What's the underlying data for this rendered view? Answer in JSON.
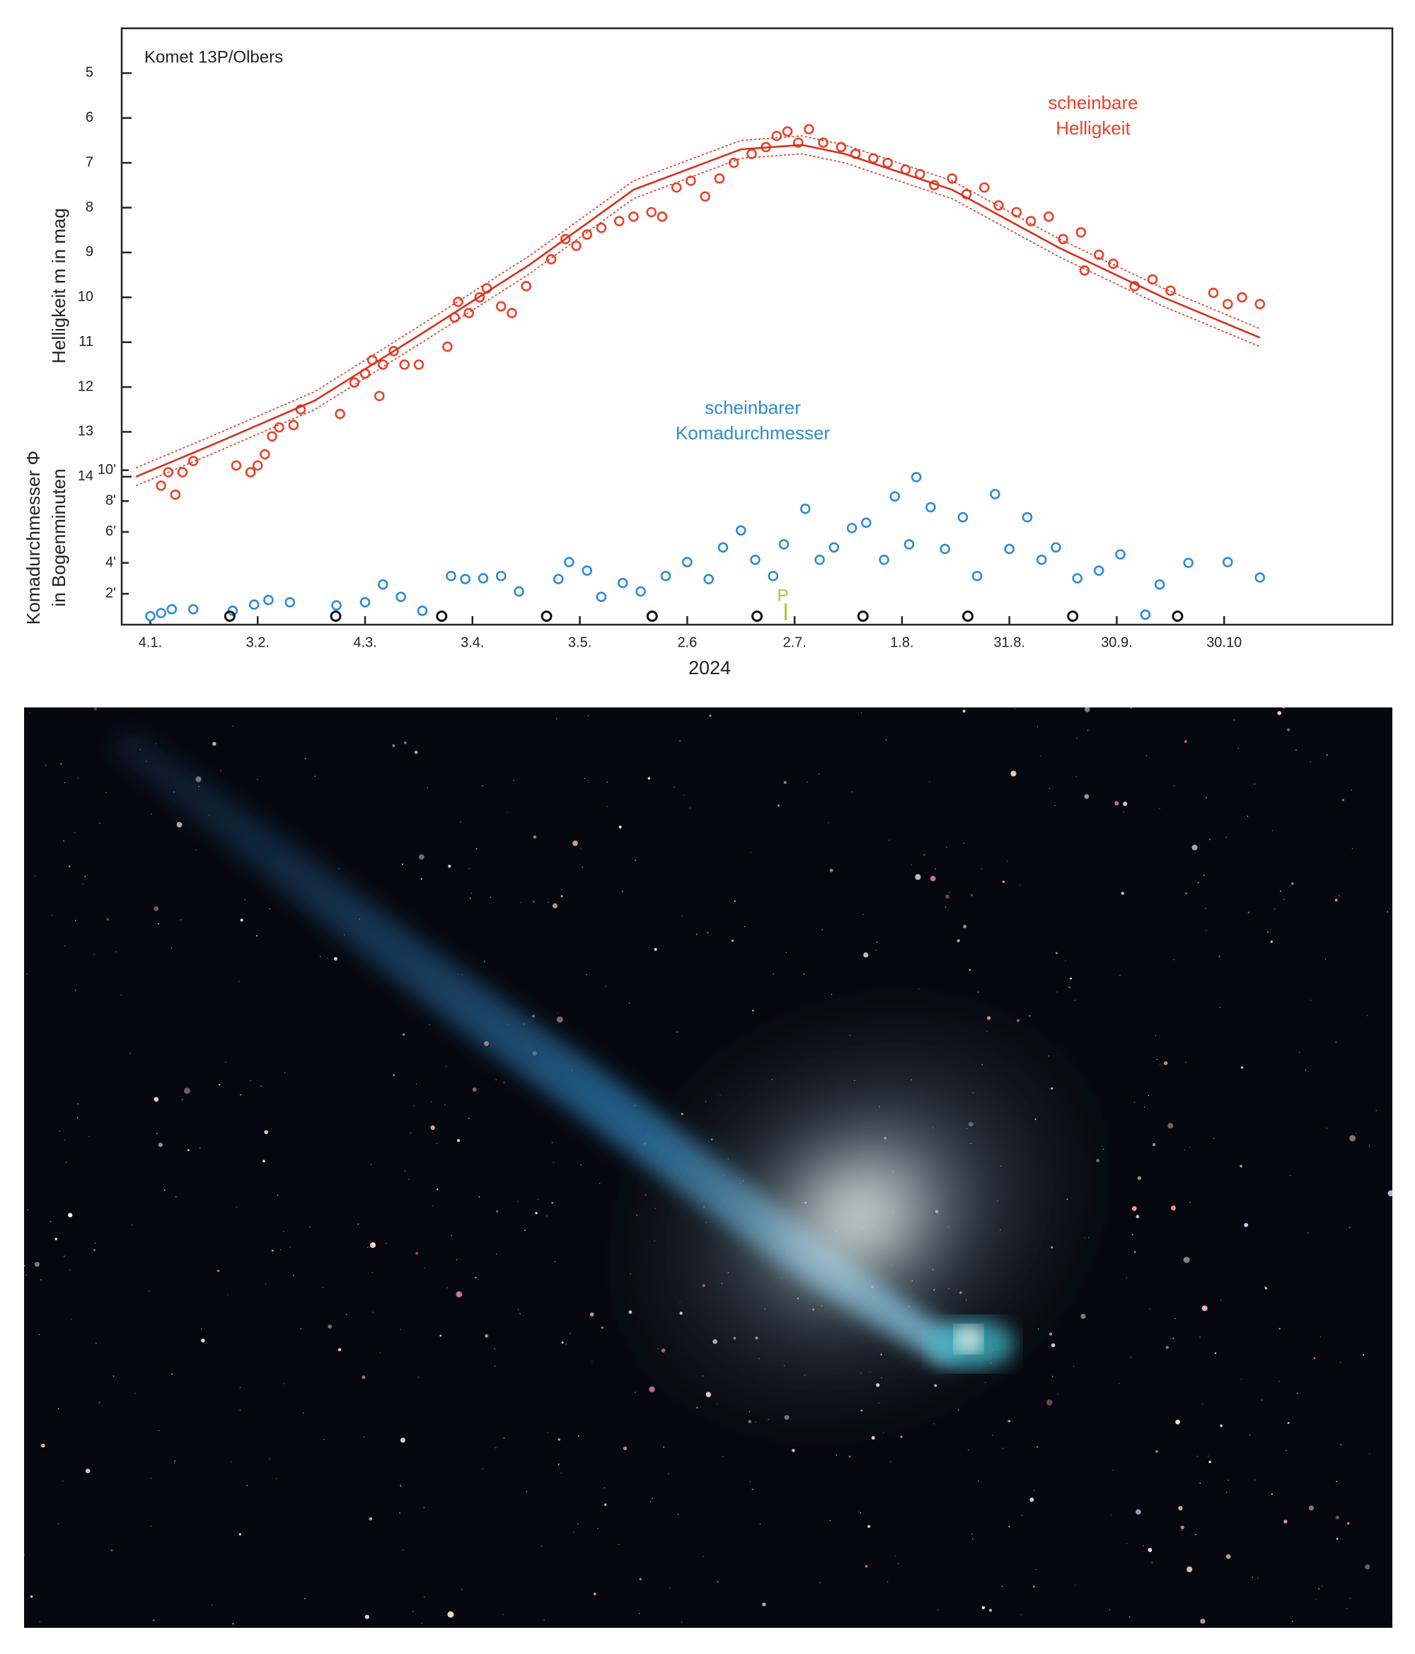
{
  "chart_data": {
    "type": "scatter",
    "title": "Komet 13P/Olbers",
    "y_label": "Helligkeit m in mag",
    "y2_label": [
      "Komadurchmesser Φ",
      "in Bogenminuten"
    ],
    "x_label": "2024",
    "annotations": [
      {
        "text": [
          "scheinbare",
          "Helligkeit"
        ],
        "color": "#e8412c"
      },
      {
        "text": [
          "scheinbarer",
          "Komadurchmesser"
        ],
        "color": "#2f8bcf"
      }
    ],
    "xlim": [
      -4,
      351
    ],
    "xticks": [
      {
        "value": 4,
        "label": "4.1."
      },
      {
        "value": 34,
        "label": "3.2."
      },
      {
        "value": 64,
        "label": "4.3."
      },
      {
        "value": 94,
        "label": "3.4."
      },
      {
        "value": 124,
        "label": "3.5."
      },
      {
        "value": 154,
        "label": "2.6"
      },
      {
        "value": 184,
        "label": "2.7."
      },
      {
        "value": 214,
        "label": "1.8."
      },
      {
        "value": 244,
        "label": "31.8."
      },
      {
        "value": 274,
        "label": "30.9."
      },
      {
        "value": 304,
        "label": "30.10"
      }
    ],
    "ylim": [
      17.3,
      4
    ],
    "yticks": [
      5,
      6,
      7,
      8,
      9,
      10,
      11,
      12,
      13,
      14
    ],
    "y2lim": [
      0,
      38.6
    ],
    "y2ticks": [
      {
        "value": 2,
        "label": "2'"
      },
      {
        "value": 4,
        "label": "4'"
      },
      {
        "value": 6,
        "label": "6'"
      },
      {
        "value": 8,
        "label": "8'"
      },
      {
        "value": 10,
        "label": "10'"
      }
    ],
    "series": [
      {
        "type": "scatter",
        "axis": "y",
        "color": "#e8412c",
        "x": [
          7,
          9,
          11,
          13,
          16,
          28,
          32,
          34,
          36,
          38,
          40,
          44,
          46,
          57,
          61,
          64,
          66,
          68,
          69,
          72,
          75,
          79,
          87,
          89,
          90,
          93,
          96,
          98,
          102,
          105,
          109,
          116,
          120,
          123,
          126,
          130,
          135,
          139,
          144,
          147,
          151,
          155,
          159,
          163,
          167,
          172,
          176,
          179,
          182,
          185,
          188,
          192,
          197,
          201,
          206,
          210,
          215,
          219,
          223,
          228,
          232,
          237,
          241,
          246,
          250,
          255,
          259,
          264,
          265,
          269,
          273,
          279,
          284,
          289,
          301,
          305,
          309,
          314
        ],
        "values": [
          14.2,
          13.9,
          14.4,
          13.9,
          13.65,
          13.75,
          13.9,
          13.75,
          13.5,
          13.1,
          12.9,
          12.85,
          12.5,
          12.6,
          11.9,
          11.7,
          11.4,
          12.2,
          11.5,
          11.2,
          11.5,
          11.5,
          11.1,
          10.45,
          10.1,
          10.35,
          10.0,
          9.8,
          10.2,
          10.35,
          9.75,
          9.15,
          8.7,
          8.85,
          8.6,
          8.45,
          8.3,
          8.2,
          8.1,
          8.2,
          7.55,
          7.4,
          7.75,
          7.35,
          7.0,
          6.8,
          6.65,
          6.4,
          6.3,
          6.55,
          6.25,
          6.55,
          6.65,
          6.8,
          6.9,
          7.0,
          7.15,
          7.25,
          7.5,
          7.35,
          7.7,
          7.55,
          7.95,
          8.1,
          8.3,
          8.2,
          8.7,
          8.55,
          9.4,
          9.05,
          9.25,
          9.75,
          9.6,
          9.85,
          9.9,
          10.15,
          10.0,
          10.15
        ]
      },
      {
        "type": "scatter",
        "axis": "y2",
        "color": "#2f8bcf",
        "x": [
          4,
          7,
          10,
          16,
          27,
          33,
          37,
          43,
          56,
          64,
          69,
          74,
          80,
          88,
          92,
          97,
          102,
          107,
          118,
          121,
          126,
          130,
          136,
          141,
          148,
          154,
          160,
          164,
          169,
          173,
          178,
          181,
          187,
          191,
          195,
          200,
          204,
          209,
          212,
          216,
          218,
          222,
          226,
          231,
          235,
          240,
          244,
          249,
          253,
          257,
          263,
          269,
          275,
          282,
          286,
          294,
          305,
          314
        ],
        "values": [
          0.55,
          0.75,
          1.0,
          1.0,
          0.9,
          1.3,
          1.6,
          1.45,
          1.25,
          1.45,
          2.6,
          1.8,
          0.9,
          3.15,
          2.95,
          3.0,
          3.15,
          2.15,
          2.95,
          4.05,
          3.5,
          1.8,
          2.7,
          2.15,
          3.15,
          4.05,
          2.95,
          5.0,
          6.1,
          4.2,
          3.15,
          5.2,
          7.5,
          4.2,
          5.0,
          6.25,
          6.6,
          4.2,
          8.3,
          5.2,
          9.55,
          7.6,
          4.9,
          6.95,
          3.15,
          8.45,
          4.9,
          6.95,
          4.2,
          5.0,
          3.0,
          3.5,
          4.55,
          0.65,
          2.6,
          4.0,
          4.05,
          3.05
        ]
      },
      {
        "type": "line",
        "axis": "y",
        "color": "#d8301f",
        "dash": false,
        "x": [
          0,
          21,
          50,
          80,
          110,
          139,
          169,
          186,
          198,
          228,
          258,
          287,
          314
        ],
        "values": [
          14.0,
          13.3,
          12.3,
          10.8,
          9.27,
          7.6,
          6.7,
          6.6,
          6.8,
          7.6,
          8.9,
          10.0,
          10.9
        ]
      },
      {
        "type": "line",
        "axis": "y",
        "color": "#d8301f",
        "dash": true,
        "x": [
          0,
          21,
          50,
          80,
          110,
          139,
          169,
          186,
          198,
          228,
          258,
          287,
          314
        ],
        "values": [
          13.8,
          13.1,
          12.1,
          10.6,
          9.07,
          7.4,
          6.5,
          6.4,
          6.6,
          7.4,
          8.7,
          9.8,
          10.7
        ]
      },
      {
        "type": "line",
        "axis": "y",
        "color": "#d8301f",
        "dash": true,
        "x": [
          0,
          21,
          50,
          80,
          110,
          139,
          169,
          186,
          198,
          228,
          258,
          287,
          314
        ],
        "values": [
          14.2,
          13.5,
          12.5,
          11.0,
          9.47,
          7.8,
          6.9,
          6.8,
          7.0,
          7.8,
          9.1,
          10.2,
          11.1
        ]
      }
    ],
    "markers": {
      "color": "#111",
      "x": [
        26.2,
        55.8,
        85.4,
        114.7,
        144.2,
        173.5,
        203.1,
        232.4,
        261.7,
        291
      ]
    },
    "perihelion": {
      "x": 181.5,
      "label": "P",
      "color": "#a8c83c"
    }
  }
}
